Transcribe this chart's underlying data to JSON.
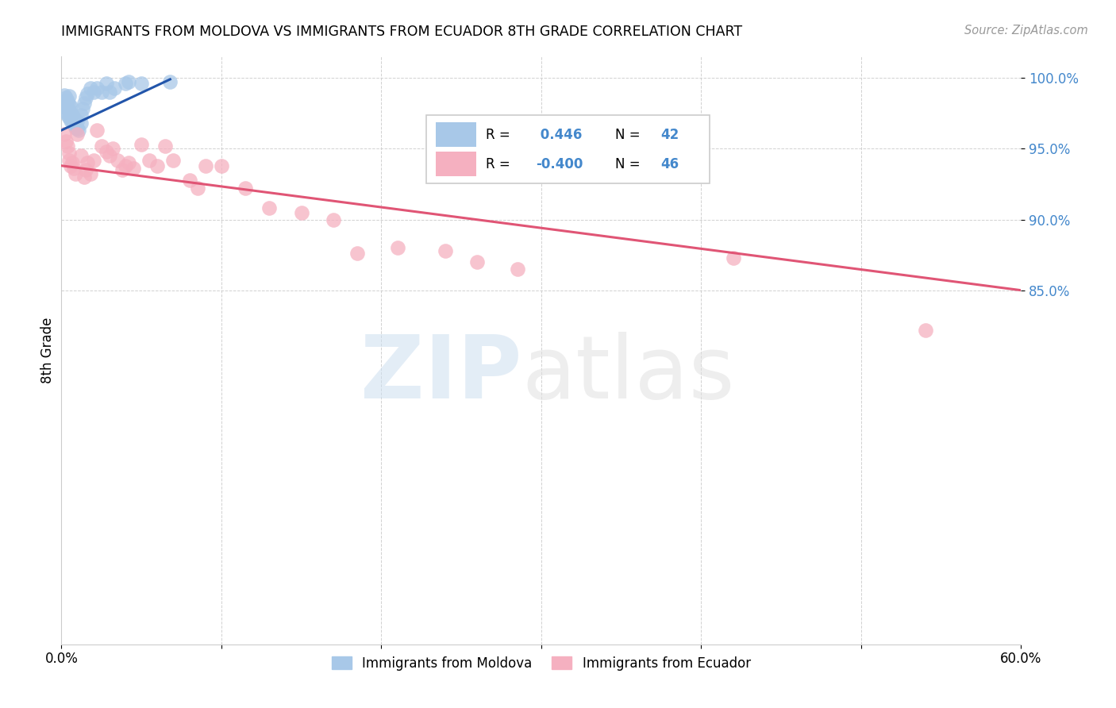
{
  "title": "IMMIGRANTS FROM MOLDOVA VS IMMIGRANTS FROM ECUADOR 8TH GRADE CORRELATION CHART",
  "source": "Source: ZipAtlas.com",
  "ylabel": "8th Grade",
  "xlim": [
    0.0,
    0.6
  ],
  "ylim": [
    0.6,
    1.015
  ],
  "yticks": [
    0.85,
    0.9,
    0.95,
    1.0
  ],
  "ytick_labels": [
    "85.0%",
    "90.0%",
    "95.0%",
    "100.0%"
  ],
  "xticks": [
    0.0,
    0.1,
    0.2,
    0.3,
    0.4,
    0.5,
    0.6
  ],
  "xtick_labels": [
    "0.0%",
    "",
    "",
    "",
    "",
    "",
    "60.0%"
  ],
  "legend_label_moldova": "Immigrants from Moldova",
  "legend_label_ecuador": "Immigrants from Ecuador",
  "color_moldova": "#a8c8e8",
  "color_moldova_line": "#2255aa",
  "color_ecuador": "#f5b0c0",
  "color_ecuador_line": "#e05575",
  "color_axis_text": "#4488cc",
  "moldova_x": [
    0.001,
    0.002,
    0.002,
    0.003,
    0.003,
    0.003,
    0.004,
    0.004,
    0.004,
    0.005,
    0.005,
    0.005,
    0.005,
    0.006,
    0.006,
    0.006,
    0.007,
    0.007,
    0.008,
    0.008,
    0.009,
    0.009,
    0.01,
    0.01,
    0.011,
    0.012,
    0.012,
    0.013,
    0.014,
    0.015,
    0.016,
    0.018,
    0.02,
    0.022,
    0.025,
    0.028,
    0.03,
    0.033,
    0.04,
    0.042,
    0.05,
    0.068
  ],
  "moldova_y": [
    0.98,
    0.983,
    0.988,
    0.976,
    0.981,
    0.986,
    0.974,
    0.979,
    0.984,
    0.972,
    0.977,
    0.981,
    0.987,
    0.97,
    0.975,
    0.98,
    0.969,
    0.974,
    0.967,
    0.972,
    0.965,
    0.97,
    0.964,
    0.969,
    0.963,
    0.968,
    0.974,
    0.978,
    0.982,
    0.986,
    0.989,
    0.993,
    0.99,
    0.993,
    0.99,
    0.996,
    0.99,
    0.993,
    0.996,
    0.997,
    0.996,
    0.997
  ],
  "ecuador_x": [
    0.002,
    0.003,
    0.004,
    0.005,
    0.005,
    0.006,
    0.007,
    0.008,
    0.009,
    0.01,
    0.012,
    0.014,
    0.015,
    0.016,
    0.018,
    0.02,
    0.022,
    0.025,
    0.028,
    0.03,
    0.032,
    0.035,
    0.038,
    0.04,
    0.042,
    0.045,
    0.05,
    0.055,
    0.06,
    0.065,
    0.07,
    0.08,
    0.085,
    0.09,
    0.1,
    0.115,
    0.13,
    0.15,
    0.17,
    0.185,
    0.21,
    0.24,
    0.26,
    0.285,
    0.42,
    0.54
  ],
  "ecuador_y": [
    0.96,
    0.955,
    0.952,
    0.947,
    0.942,
    0.938,
    0.94,
    0.936,
    0.932,
    0.96,
    0.945,
    0.93,
    0.935,
    0.94,
    0.932,
    0.942,
    0.963,
    0.952,
    0.948,
    0.945,
    0.95,
    0.942,
    0.935,
    0.938,
    0.94,
    0.936,
    0.953,
    0.942,
    0.938,
    0.952,
    0.942,
    0.928,
    0.922,
    0.938,
    0.938,
    0.922,
    0.908,
    0.905,
    0.9,
    0.876,
    0.88,
    0.878,
    0.87,
    0.865,
    0.873,
    0.822
  ],
  "moldova_trendline_x": [
    0.0,
    0.068
  ],
  "moldova_trendline_y": [
    0.963,
    0.999
  ],
  "ecuador_trendline_x": [
    0.0,
    0.6
  ],
  "ecuador_trendline_y": [
    0.938,
    0.85
  ]
}
